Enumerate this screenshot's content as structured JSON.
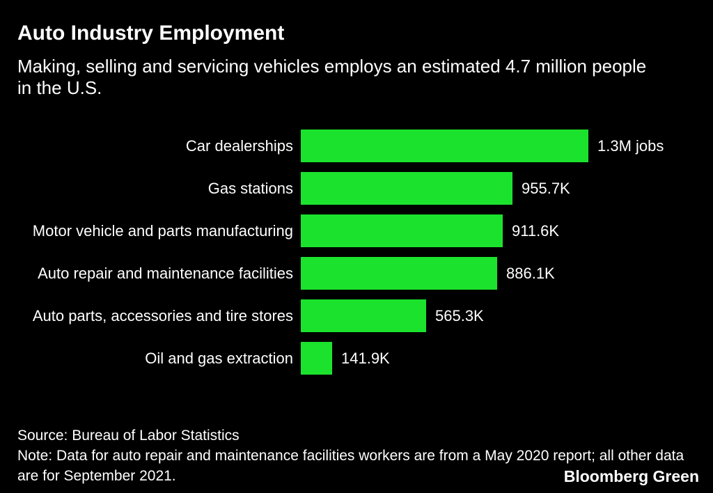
{
  "header": {
    "title": "Auto Industry Employment",
    "subtitle": "Making, selling and servicing vehicles employs an estimated 4.7 million people in the U.S."
  },
  "chart_data": {
    "type": "bar",
    "orientation": "horizontal",
    "title": "Auto Industry Employment",
    "subtitle": "Making, selling and servicing vehicles employs an estimated 4.7 million people in the U.S.",
    "categories": [
      "Car dealerships",
      "Gas stations",
      "Motor vehicle and parts manufacturing",
      "Auto repair and maintenance facilities",
      "Auto parts, accessories and tire stores",
      "Oil and gas extraction"
    ],
    "values_thousands": [
      1300,
      955.7,
      911.6,
      886.1,
      565.3,
      141.9
    ],
    "value_labels": [
      "1.3M jobs",
      "955.7K",
      "911.6K",
      "886.1K",
      "565.3K",
      "141.9K"
    ],
    "xlim_thousands": [
      0,
      1300
    ],
    "bar_color": "#1be32d",
    "grid": false,
    "legend": false
  },
  "footer": {
    "source": "Source: Bureau of Labor Statistics",
    "note": "Note: Data for auto repair and maintenance facilities workers are from a May 2020 report; all other data are for September 2021.",
    "brand": "Bloomberg Green"
  },
  "colors": {
    "background": "#000000",
    "text": "#ffffff",
    "bar": "#1be32d"
  }
}
